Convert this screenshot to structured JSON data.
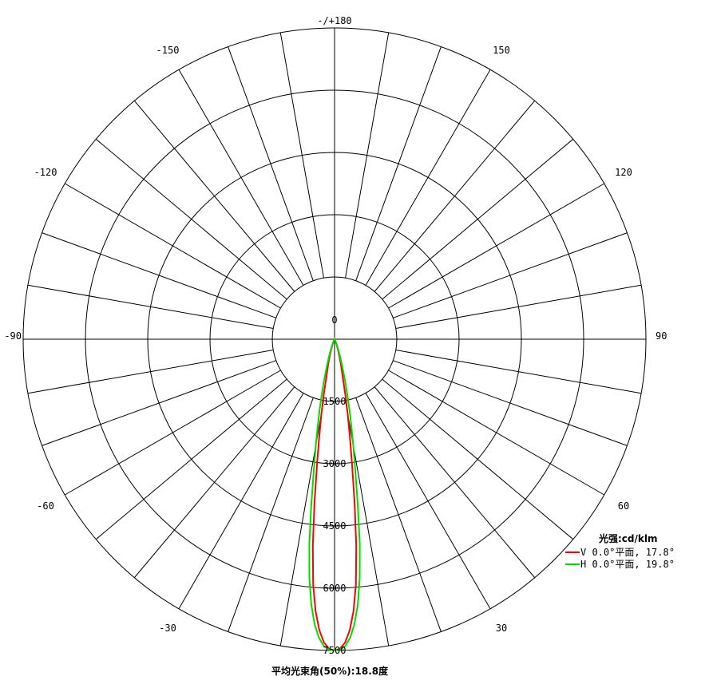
{
  "chart_data": {
    "type": "line",
    "subtype": "polar",
    "angle_labels": [
      {
        "angle": 180,
        "text": "-/+180"
      },
      {
        "angle": -150,
        "text": "-150"
      },
      {
        "angle": 150,
        "text": "150"
      },
      {
        "angle": -120,
        "text": "-120"
      },
      {
        "angle": 120,
        "text": "120"
      },
      {
        "angle": -90,
        "text": "-90"
      },
      {
        "angle": 90,
        "text": "90"
      },
      {
        "angle": -60,
        "text": "-60"
      },
      {
        "angle": 60,
        "text": "60"
      },
      {
        "angle": -30,
        "text": "-30"
      },
      {
        "angle": 30,
        "text": "30"
      },
      {
        "angle": 0,
        "text": "0"
      }
    ],
    "radial_ticks": [
      "0",
      "1500",
      "3000",
      "4500",
      "6000",
      "7500"
    ],
    "rmax": 7500,
    "r_inner_circle_ratio": 0.2,
    "series": [
      {
        "name": "V 0.0°平面, 17.8°",
        "color": "#ff0000",
        "points": [
          [
            0,
            7500
          ],
          [
            1,
            7460
          ],
          [
            2,
            7310
          ],
          [
            3,
            7020
          ],
          [
            4,
            6560
          ],
          [
            5,
            5920
          ],
          [
            6,
            5000
          ],
          [
            7,
            3960
          ],
          [
            8,
            3010
          ],
          [
            9,
            2340
          ],
          [
            10,
            1800
          ],
          [
            11,
            1360
          ],
          [
            12,
            980
          ],
          [
            14,
            640
          ],
          [
            16,
            420
          ],
          [
            18,
            260
          ],
          [
            20,
            150
          ],
          [
            22,
            80
          ],
          [
            24,
            40
          ],
          [
            26,
            20
          ],
          [
            30,
            0
          ]
        ]
      },
      {
        "name": "H 0.0°平面, 19.8°",
        "color": "#00dd00",
        "points": [
          [
            0,
            7500
          ],
          [
            1,
            7480
          ],
          [
            2,
            7400
          ],
          [
            3,
            7200
          ],
          [
            4,
            6880
          ],
          [
            5,
            6420
          ],
          [
            6,
            5800
          ],
          [
            7,
            4980
          ],
          [
            8,
            4020
          ],
          [
            9,
            3180
          ],
          [
            10,
            2600
          ],
          [
            11,
            2120
          ],
          [
            12,
            1720
          ],
          [
            13,
            1380
          ],
          [
            14,
            1080
          ],
          [
            16,
            680
          ],
          [
            18,
            420
          ],
          [
            20,
            250
          ],
          [
            22,
            140
          ],
          [
            24,
            70
          ],
          [
            26,
            30
          ],
          [
            30,
            0
          ]
        ]
      }
    ],
    "legend_title": "光强:cd/klm",
    "footer": "平均光束角(50%):18.8度"
  }
}
